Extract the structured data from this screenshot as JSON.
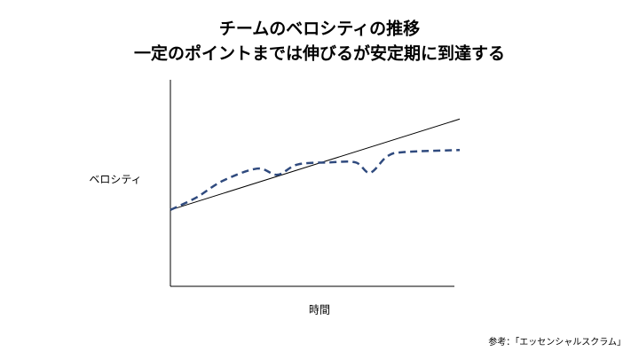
{
  "chart_data": {
    "type": "line",
    "title": "チームのベロシティの推移",
    "subtitle": "一定のポイントまでは伸びるが安定期に到達する",
    "y_label": "ベロシティ",
    "x_label": "時間",
    "source": "参考：「エッセンシャルスクラム」",
    "xlim": [
      0,
      100
    ],
    "ylim": [
      0,
      100
    ],
    "series": [
      {
        "color": "#000000",
        "dash": false,
        "x": [
          0,
          100
        ],
        "values": [
          37,
          81
        ]
      },
      {
        "color": "#2f4a7e",
        "dash": true,
        "x": [
          0,
          9,
          18,
          30,
          37,
          44,
          55,
          64,
          69,
          75,
          81,
          100
        ],
        "values": [
          37,
          43,
          51,
          57,
          54,
          59,
          60,
          60,
          55,
          63,
          65,
          66
        ]
      }
    ]
  }
}
